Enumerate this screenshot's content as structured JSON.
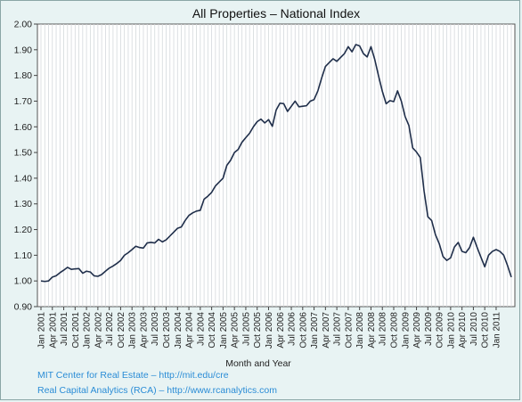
{
  "chart_data": {
    "type": "line",
    "title": "All Properties – National Index",
    "xlabel": "Month and Year",
    "ylabel": "",
    "ylim": [
      0.9,
      2.0
    ],
    "yticks": [
      "0.90",
      "1.00",
      "1.10",
      "1.20",
      "1.30",
      "1.40",
      "1.50",
      "1.60",
      "1.70",
      "1.80",
      "1.90",
      "2.00"
    ],
    "xticks": [
      "Jan 2001",
      "Apr 2001",
      "Jul 2001",
      "Oct 2001",
      "Jan 2002",
      "Apr 2002",
      "Jul 2002",
      "Oct 2002",
      "Jan 2003",
      "Apr 2003",
      "Jul 2003",
      "Oct 2003",
      "Jan 2004",
      "Apr 2004",
      "Jul 2004",
      "Oct 2004",
      "Jan 2005",
      "Apr 2005",
      "Jul 2005",
      "Oct 2005",
      "Jan 2006",
      "Apr 2006",
      "Jul 2006",
      "Oct 2006",
      "Jan 2007",
      "Apr 2007",
      "Jul 2007",
      "Oct 2007",
      "Jan 2008",
      "Apr 2008",
      "Jul 2008",
      "Oct 2008",
      "Jan 2009",
      "Apr 2009",
      "Jul 2009",
      "Oct 2009",
      "Jan 2010",
      "Apr 2010",
      "Jul 2010",
      "Oct 2010",
      "Jan 2011"
    ],
    "grid": "vertical",
    "line_color": "#1f2e4a",
    "series": [
      {
        "start": "Jan 2001",
        "frequency": "monthly",
        "values": [
          1.0,
          0.998,
          1.0,
          1.015,
          1.02,
          1.032,
          1.042,
          1.053,
          1.045,
          1.047,
          1.048,
          1.03,
          1.038,
          1.035,
          1.02,
          1.018,
          1.025,
          1.038,
          1.05,
          1.058,
          1.068,
          1.08,
          1.1,
          1.11,
          1.122,
          1.135,
          1.13,
          1.128,
          1.148,
          1.15,
          1.148,
          1.162,
          1.152,
          1.16,
          1.175,
          1.19,
          1.205,
          1.21,
          1.235,
          1.255,
          1.265,
          1.272,
          1.275,
          1.318,
          1.33,
          1.345,
          1.37,
          1.385,
          1.4,
          1.45,
          1.47,
          1.5,
          1.512,
          1.54,
          1.558,
          1.575,
          1.6,
          1.62,
          1.63,
          1.615,
          1.628,
          1.602,
          1.665,
          1.692,
          1.69,
          1.66,
          1.68,
          1.7,
          1.678,
          1.68,
          1.682,
          1.7,
          1.706,
          1.74,
          1.79,
          1.835,
          1.85,
          1.865,
          1.855,
          1.87,
          1.885,
          1.912,
          1.892,
          1.92,
          1.915,
          1.885,
          1.872,
          1.912,
          1.862,
          1.798,
          1.738,
          1.69,
          1.702,
          1.698,
          1.74,
          1.7,
          1.64,
          1.605,
          1.518,
          1.502,
          1.48,
          1.35,
          1.25,
          1.235,
          1.18,
          1.145,
          1.095,
          1.08,
          1.09,
          1.132,
          1.15,
          1.115,
          1.11,
          1.13,
          1.17,
          1.13,
          1.092,
          1.055,
          1.1,
          1.115,
          1.122,
          1.115,
          1.1,
          1.06,
          1.015
        ]
      }
    ]
  },
  "footer": {
    "credit_mit": "MIT Center for Real Estate – http://mit.edu/cre",
    "credit_rca": "Real Capital Analytics (RCA) – http://www.rcanalytics.com"
  }
}
